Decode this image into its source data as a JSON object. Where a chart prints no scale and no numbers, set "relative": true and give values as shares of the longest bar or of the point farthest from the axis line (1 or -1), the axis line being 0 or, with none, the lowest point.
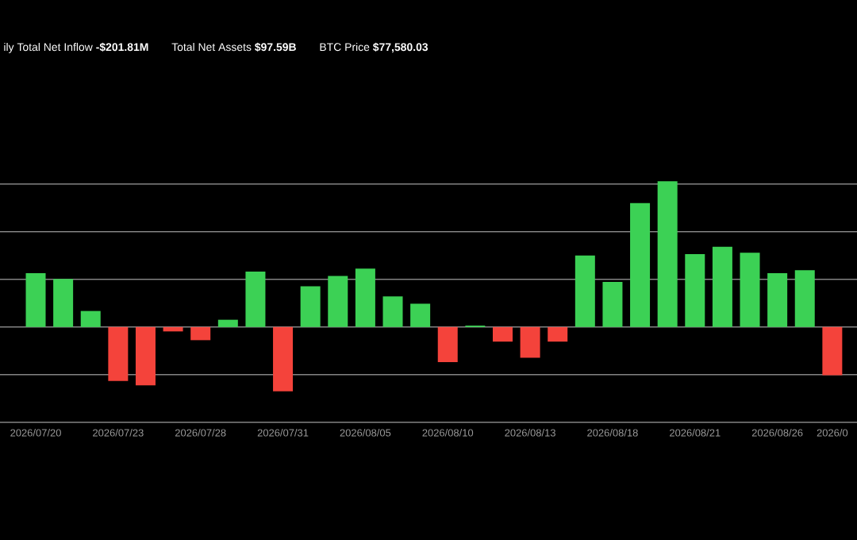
{
  "chart_data": {
    "type": "bar",
    "relative": true,
    "grid": "y",
    "categories": [
      "2026/07/20",
      null,
      null,
      "2026/07/23",
      null,
      null,
      "2026/07/28",
      null,
      null,
      "2026/07/31",
      null,
      null,
      "2026/08/05",
      null,
      null,
      "2026/08/10",
      null,
      null,
      "2026/08/13",
      null,
      null,
      "2026/08/18",
      null,
      null,
      "2026/08/21",
      null,
      null,
      "2026/08/26",
      null,
      "2026/0"
    ],
    "values": [
      0.37,
      0.33,
      0.11,
      -0.37,
      -0.4,
      -0.03,
      -0.09,
      0.05,
      0.38,
      -0.44,
      0.28,
      0.35,
      0.4,
      0.21,
      0.16,
      -0.24,
      0.01,
      -0.1,
      -0.21,
      -0.1,
      0.49,
      0.31,
      0.85,
      1,
      0.5,
      0.55,
      0.51,
      0.37,
      0.39,
      -0.33
    ],
    "colors": [
      "#3cd155",
      "#3cd155",
      "#3cd155",
      "#f4433b",
      "#f4433b",
      "#f4433b",
      "#f4433b",
      "#3cd155",
      "#3cd155",
      "#f4433b",
      "#3cd155",
      "#3cd155",
      "#3cd155",
      "#3cd155",
      "#3cd155",
      "#f4433b",
      "#3cd155",
      "#f4433b",
      "#f4433b",
      "#f4433b",
      "#3cd155",
      "#3cd155",
      "#3cd155",
      "#3cd155",
      "#3cd155",
      "#3cd155",
      "#3cd155",
      "#3cd155",
      "#3cd155",
      "#f4433b"
    ],
    "annotations": [
      "ily Total Net Inflow **-$201.81M**",
      "Total Net Assets **$97.59B**",
      "BTC Price **$77,580.03**"
    ]
  }
}
